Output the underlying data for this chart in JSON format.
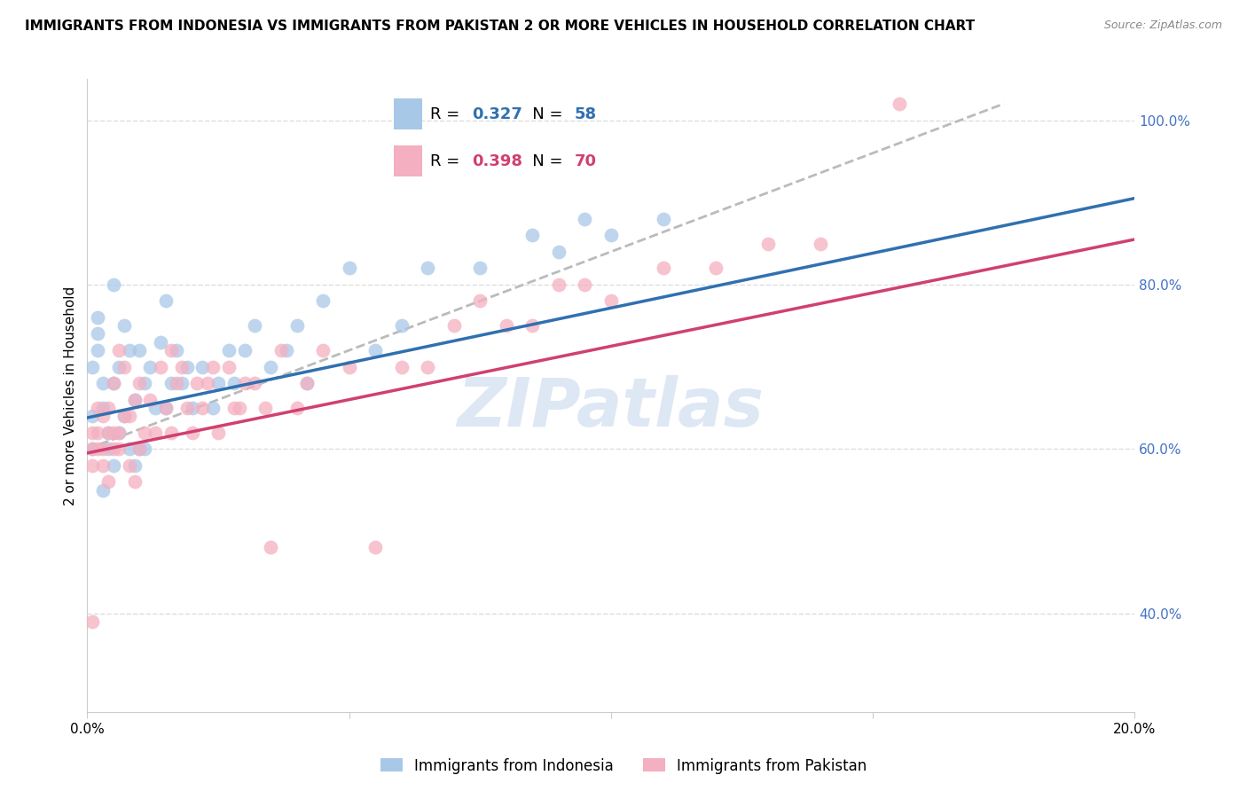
{
  "title": "IMMIGRANTS FROM INDONESIA VS IMMIGRANTS FROM PAKISTAN 2 OR MORE VEHICLES IN HOUSEHOLD CORRELATION CHART",
  "source": "Source: ZipAtlas.com",
  "ylabel": "2 or more Vehicles in Household",
  "legend_label_blue": "Immigrants from Indonesia",
  "legend_label_pink": "Immigrants from Pakistan",
  "R_blue": 0.327,
  "N_blue": 58,
  "R_pink": 0.398,
  "N_pink": 70,
  "color_blue": "#a8c8e8",
  "color_pink": "#f4afc0",
  "color_blue_line": "#3070b0",
  "color_pink_line": "#d04070",
  "color_gray_dashed": "#bbbbbb",
  "color_right_axis": "#4472c4",
  "xlim": [
    0.0,
    0.2
  ],
  "ylim": [
    0.28,
    1.05
  ],
  "xticks": [
    0.0,
    0.05,
    0.1,
    0.15,
    0.2
  ],
  "xtick_labels": [
    "0.0%",
    "",
    "",
    "",
    "20.0%"
  ],
  "yticks_right": [
    0.4,
    0.6,
    0.8,
    1.0
  ],
  "ytick_labels_right": [
    "40.0%",
    "60.0%",
    "80.0%",
    "100.0%"
  ],
  "blue_scatter_x": [
    0.001,
    0.001,
    0.001,
    0.002,
    0.002,
    0.002,
    0.003,
    0.003,
    0.003,
    0.004,
    0.004,
    0.005,
    0.005,
    0.005,
    0.006,
    0.006,
    0.007,
    0.007,
    0.008,
    0.008,
    0.009,
    0.009,
    0.01,
    0.01,
    0.011,
    0.011,
    0.012,
    0.013,
    0.014,
    0.015,
    0.015,
    0.016,
    0.017,
    0.018,
    0.019,
    0.02,
    0.022,
    0.024,
    0.025,
    0.027,
    0.028,
    0.03,
    0.032,
    0.035,
    0.038,
    0.04,
    0.042,
    0.045,
    0.05,
    0.055,
    0.06,
    0.065,
    0.075,
    0.085,
    0.09,
    0.095,
    0.1,
    0.11
  ],
  "blue_scatter_y": [
    0.6,
    0.64,
    0.7,
    0.72,
    0.74,
    0.76,
    0.68,
    0.65,
    0.55,
    0.6,
    0.62,
    0.58,
    0.68,
    0.8,
    0.62,
    0.7,
    0.64,
    0.75,
    0.6,
    0.72,
    0.58,
    0.66,
    0.6,
    0.72,
    0.6,
    0.68,
    0.7,
    0.65,
    0.73,
    0.65,
    0.78,
    0.68,
    0.72,
    0.68,
    0.7,
    0.65,
    0.7,
    0.65,
    0.68,
    0.72,
    0.68,
    0.72,
    0.75,
    0.7,
    0.72,
    0.75,
    0.68,
    0.78,
    0.82,
    0.72,
    0.75,
    0.82,
    0.82,
    0.86,
    0.84,
    0.88,
    0.86,
    0.88
  ],
  "pink_scatter_x": [
    0.001,
    0.001,
    0.001,
    0.001,
    0.002,
    0.002,
    0.002,
    0.003,
    0.003,
    0.003,
    0.004,
    0.004,
    0.004,
    0.005,
    0.005,
    0.005,
    0.006,
    0.006,
    0.006,
    0.007,
    0.007,
    0.008,
    0.008,
    0.009,
    0.009,
    0.01,
    0.01,
    0.011,
    0.012,
    0.013,
    0.014,
    0.015,
    0.016,
    0.016,
    0.017,
    0.018,
    0.019,
    0.02,
    0.021,
    0.022,
    0.023,
    0.024,
    0.025,
    0.027,
    0.028,
    0.029,
    0.03,
    0.032,
    0.034,
    0.035,
    0.037,
    0.04,
    0.042,
    0.045,
    0.05,
    0.055,
    0.06,
    0.065,
    0.07,
    0.075,
    0.08,
    0.085,
    0.09,
    0.095,
    0.1,
    0.11,
    0.12,
    0.13,
    0.14,
    0.155
  ],
  "pink_scatter_y": [
    0.39,
    0.58,
    0.6,
    0.62,
    0.6,
    0.62,
    0.65,
    0.58,
    0.6,
    0.64,
    0.56,
    0.62,
    0.65,
    0.6,
    0.62,
    0.68,
    0.6,
    0.62,
    0.72,
    0.64,
    0.7,
    0.58,
    0.64,
    0.56,
    0.66,
    0.6,
    0.68,
    0.62,
    0.66,
    0.62,
    0.7,
    0.65,
    0.62,
    0.72,
    0.68,
    0.7,
    0.65,
    0.62,
    0.68,
    0.65,
    0.68,
    0.7,
    0.62,
    0.7,
    0.65,
    0.65,
    0.68,
    0.68,
    0.65,
    0.48,
    0.72,
    0.65,
    0.68,
    0.72,
    0.7,
    0.48,
    0.7,
    0.7,
    0.75,
    0.78,
    0.75,
    0.75,
    0.8,
    0.8,
    0.78,
    0.82,
    0.82,
    0.85,
    0.85,
    1.02
  ],
  "blue_trendline": [
    0.0,
    0.2,
    0.638,
    0.905
  ],
  "pink_trendline": [
    0.0,
    0.2,
    0.595,
    0.855
  ],
  "gray_dashed": [
    0.0,
    0.175,
    0.6,
    1.02
  ],
  "background_color": "#ffffff",
  "grid_color": "#dddddd",
  "watermark_color": "#d0ddf0",
  "title_fontsize": 11,
  "axis_label_fontsize": 11,
  "tick_fontsize": 11,
  "legend_fontsize": 13
}
